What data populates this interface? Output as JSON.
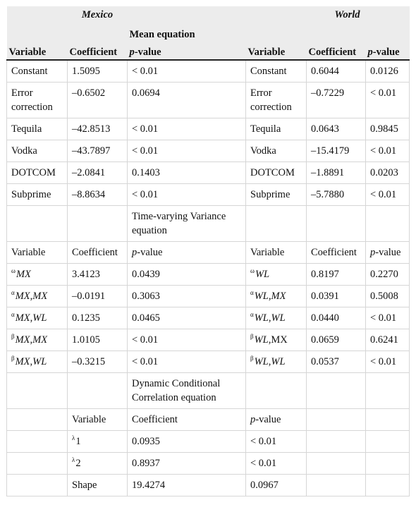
{
  "header": {
    "mexico": "Mexico",
    "world": "World",
    "mean_equation": "Mean equation",
    "variable": "Variable",
    "coefficient": "Coefficient",
    "p": "p",
    "value_suffix": "-value"
  },
  "mean_rows": [
    {
      "mx_var": "Constant",
      "mx_coef": "1.5095",
      "mx_p": "< 0.01",
      "wl_var": "Constant",
      "wl_coef": "0.6044",
      "wl_p": "0.0126"
    },
    {
      "mx_var": "Error correction",
      "mx_coef": "–0.6502",
      "mx_p": "0.0694",
      "wl_var": "Error correction",
      "wl_coef": "–0.7229",
      "wl_p": "< 0.01"
    },
    {
      "mx_var": "Tequila",
      "mx_coef": "–42.8513",
      "mx_p": "< 0.01",
      "wl_var": "Tequila",
      "wl_coef": "0.0643",
      "wl_p": "0.9845"
    },
    {
      "mx_var": "Vodka",
      "mx_coef": "–43.7897",
      "mx_p": "< 0.01",
      "wl_var": "Vodka",
      "wl_coef": "–15.4179",
      "wl_p": "< 0.01"
    },
    {
      "mx_var": "DOTCOM",
      "mx_coef": "–2.0841",
      "mx_p": "0.1403",
      "wl_var": "DOTCOM",
      "wl_coef": "–1.8891",
      "wl_p": "0.0203"
    },
    {
      "mx_var": "Subprime",
      "mx_coef": "–8.8634",
      "mx_p": "< 0.01",
      "wl_var": "Subprime",
      "wl_coef": "–5.7880",
      "wl_p": "< 0.01"
    }
  ],
  "variance": {
    "title": "Time-varying Variance equation",
    "variable": "Variable",
    "coefficient": "Coefficient",
    "p": "p",
    "value_suffix": "-value",
    "rows": [
      {
        "mx_sup": "ω",
        "mx_var_a": "MX",
        "mx_var_b": "",
        "mx_var_c": "",
        "mx_coef": "3.4123",
        "mx_p": "0.0439",
        "wl_sup": "ω",
        "wl_var_a": "WL",
        "wl_var_b": "",
        "wl_var_c": "",
        "wl_coef": "0.8197",
        "wl_p": "0.2270"
      },
      {
        "mx_sup": "α",
        "mx_var_a": "MX",
        "mx_var_b": ",",
        "mx_var_c": "MX",
        "mx_coef": "–0.0191",
        "mx_p": "0.3063",
        "wl_sup": "α",
        "wl_var_a": "WL",
        "wl_var_b": ",",
        "wl_var_c": "MX",
        "wl_coef": "0.0391",
        "wl_p": "0.5008"
      },
      {
        "mx_sup": "α",
        "mx_var_a": "MX",
        "mx_var_b": ",",
        "mx_var_c": "WL",
        "mx_coef": "0.1235",
        "mx_p": "0.0465",
        "wl_sup": "α",
        "wl_var_a": "WL",
        "wl_var_b": ",",
        "wl_var_c": "WL",
        "wl_coef": "0.0440",
        "wl_p": "< 0.01"
      },
      {
        "mx_sup": "β",
        "mx_var_a": "MX",
        "mx_var_b": ",",
        "mx_var_c": "MX",
        "mx_coef": "1.0105",
        "mx_p": "< 0.01",
        "wl_sup": "β",
        "wl_var_a": "WL",
        "wl_var_b": ",MX",
        "wl_var_c": "",
        "wl_coef": "0.0659",
        "wl_p": "0.6241"
      },
      {
        "mx_sup": "β",
        "mx_var_a": "MX",
        "mx_var_b": ",",
        "mx_var_c": "WL",
        "mx_coef": "–0.3215",
        "mx_p": "< 0.01",
        "wl_sup": "β",
        "wl_var_a": "WL",
        "wl_var_b": ",",
        "wl_var_c": "WL",
        "wl_coef": "0.0537",
        "wl_p": "< 0.01"
      }
    ]
  },
  "dcc": {
    "title": "Dynamic Conditional Correlation equation",
    "variable": "Variable",
    "coefficient": "Coefficient",
    "p": "p",
    "value_suffix": "-value",
    "rows": [
      {
        "sup": "λ",
        "var": "1",
        "coef": "0.0935",
        "p": "< 0.01"
      },
      {
        "sup": "λ",
        "var": "2",
        "coef": "0.8937",
        "p": "< 0.01"
      },
      {
        "sup": "",
        "var": "Shape",
        "coef": "19.4274",
        "p": "0.0967"
      }
    ]
  }
}
